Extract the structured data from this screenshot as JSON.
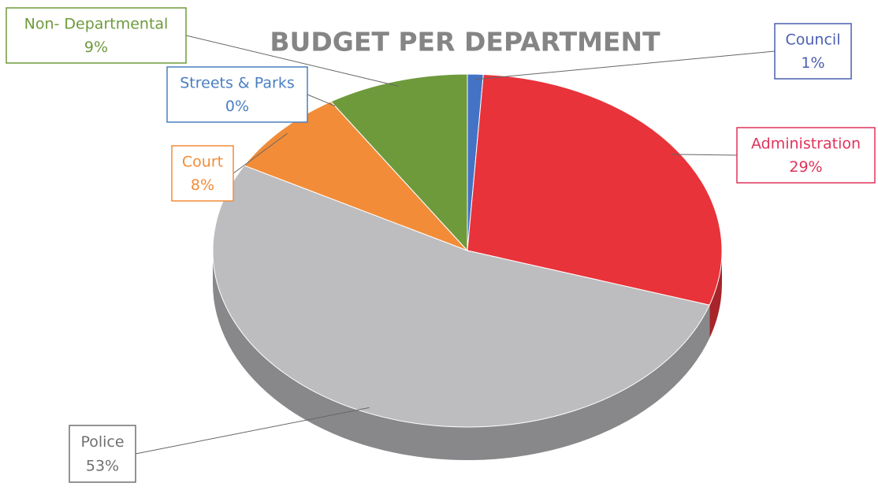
{
  "chart_data": {
    "type": "pie",
    "title": "BUDGET PER DEPARTMENT",
    "categories": [
      "Council",
      "Administration",
      "Police",
      "Court",
      "Streets & Parks",
      "Non- Departmental"
    ],
    "values": [
      1,
      29,
      53,
      8,
      0,
      9
    ],
    "value_labels": [
      "1%",
      "29%",
      "53%",
      "8%",
      "0%",
      "9%"
    ],
    "colors": [
      "#4472c4",
      "#e8333a",
      "#bdbdc0",
      "#f28c38",
      "#4a7fc1",
      "#6e9a3c"
    ]
  }
}
